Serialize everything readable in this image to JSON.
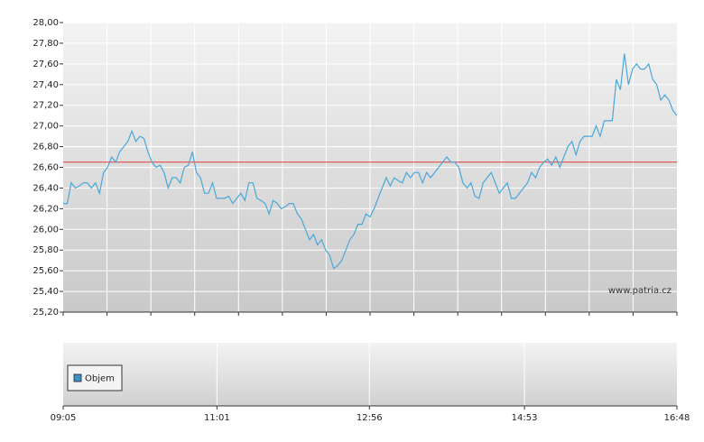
{
  "chart_data": [
    {
      "type": "line",
      "source": "www.patria.cz",
      "xlim": [
        "09:05",
        "16:48"
      ],
      "ylim": [
        25.2,
        28
      ],
      "yticks": [
        {
          "value": 25.2,
          "label": "25,20"
        },
        {
          "value": 25.4,
          "label": "25,40"
        },
        {
          "value": 25.6,
          "label": "25,60"
        },
        {
          "value": 25.8,
          "label": "25,80"
        },
        {
          "value": 26,
          "label": "26,00"
        },
        {
          "value": 26.2,
          "label": "26,20"
        },
        {
          "value": 26.4,
          "label": "26,40"
        },
        {
          "value": 26.6,
          "label": "26,60"
        },
        {
          "value": 26.8,
          "label": "26,80"
        },
        {
          "value": 27,
          "label": "27,00"
        },
        {
          "value": 27.2,
          "label": "27,20"
        },
        {
          "value": 27.4,
          "label": "27,40"
        },
        {
          "value": 27.6,
          "label": "27,60"
        },
        {
          "value": 27.8,
          "label": "27,80"
        },
        {
          "value": 28,
          "label": "28,00"
        }
      ],
      "grid": true,
      "reference_line": {
        "value": 26.65,
        "color": "#e03a3a"
      },
      "series": [
        {
          "color": "#4aa8d8",
          "values": [
            26.25,
            26.25,
            26.45,
            26.4,
            26.42,
            26.45,
            26.45,
            26.4,
            26.45,
            26.35,
            26.55,
            26.6,
            26.7,
            26.65,
            26.75,
            26.8,
            26.85,
            26.95,
            26.85,
            26.9,
            26.88,
            26.75,
            26.65,
            26.6,
            26.62,
            26.55,
            26.4,
            26.5,
            26.5,
            26.45,
            26.6,
            26.62,
            26.75,
            26.55,
            26.5,
            26.35,
            26.35,
            26.45,
            26.3,
            26.3,
            26.3,
            26.32,
            26.25,
            26.3,
            26.35,
            26.28,
            26.45,
            26.45,
            26.3,
            26.28,
            26.25,
            26.15,
            26.28,
            26.25,
            26.2,
            26.22,
            26.25,
            26.25,
            26.15,
            26.1,
            26,
            25.9,
            25.95,
            25.85,
            25.9,
            25.8,
            25.75,
            25.62,
            25.65,
            25.7,
            25.8,
            25.9,
            25.95,
            26.05,
            26.05,
            26.15,
            26.12,
            26.2,
            26.3,
            26.4,
            26.5,
            26.42,
            26.5,
            26.47,
            26.45,
            26.55,
            26.5,
            26.55,
            26.55,
            26.45,
            26.55,
            26.5,
            26.55,
            26.6,
            26.65,
            26.7,
            26.65,
            26.65,
            26.6,
            26.45,
            26.4,
            26.45,
            26.32,
            26.3,
            26.45,
            26.5,
            26.55,
            26.45,
            26.35,
            26.4,
            26.45,
            26.3,
            26.3,
            26.35,
            26.4,
            26.45,
            26.55,
            26.5,
            26.6,
            26.65,
            26.68,
            26.62,
            26.7,
            26.6,
            26.7,
            26.8,
            26.85,
            26.72,
            26.85,
            26.9,
            26.9,
            26.9,
            27,
            26.9,
            27.05,
            27.05,
            27.05,
            27.45,
            27.35,
            27.7,
            27.4,
            27.55,
            27.6,
            27.55,
            27.55,
            27.6,
            27.45,
            27.4,
            27.25,
            27.3,
            27.25,
            27.15,
            27.1
          ]
        }
      ]
    },
    {
      "type": "bar",
      "xlim": [
        "09:05",
        "16:48"
      ],
      "xticks": [
        "09:05",
        "11:01",
        "12:56",
        "14:53",
        "16:48"
      ],
      "grid": true,
      "series": [
        {
          "name": "Objem",
          "color": "#3f8fc8",
          "values": []
        }
      ]
    }
  ]
}
